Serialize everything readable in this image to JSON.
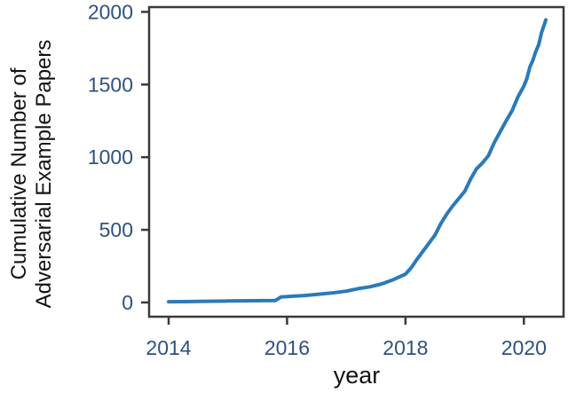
{
  "figure": {
    "background": "#ffffff"
  },
  "colors": {
    "axis_spine": "#3a3a3a",
    "tick_label": "#2e5181",
    "axis_text": "#121212",
    "line": "#2a7ab9"
  },
  "chart_data": {
    "type": "line",
    "title": "",
    "xlabel": "year",
    "ylabel_lines": [
      "Cumulative Number of",
      "Adversarial Example Papers"
    ],
    "xticks": [
      2014,
      2016,
      2018,
      2020
    ],
    "xtick_labels": [
      "2014",
      "2016",
      "2018",
      "2020"
    ],
    "yticks": [
      0,
      500,
      1000,
      1500,
      2000
    ],
    "ytick_labels": [
      "0",
      "500",
      "1000",
      "1500",
      "2000"
    ],
    "xlim": [
      2013.67,
      2020.67
    ],
    "ylim": [
      -98,
      2033
    ],
    "grid": false,
    "legend": "none",
    "series": [
      {
        "name": "cumulative-adversarial-example-papers",
        "color": "#2a7ab9",
        "points": [
          [
            2014.0,
            5
          ],
          [
            2014.3,
            6
          ],
          [
            2014.6,
            8
          ],
          [
            2015.0,
            10
          ],
          [
            2015.4,
            12
          ],
          [
            2015.8,
            13
          ],
          [
            2015.9,
            38
          ],
          [
            2016.1,
            43
          ],
          [
            2016.3,
            48
          ],
          [
            2016.5,
            55
          ],
          [
            2016.75,
            65
          ],
          [
            2017.0,
            78
          ],
          [
            2017.2,
            95
          ],
          [
            2017.4,
            108
          ],
          [
            2017.6,
            128
          ],
          [
            2017.8,
            158
          ],
          [
            2018.0,
            195
          ],
          [
            2018.1,
            240
          ],
          [
            2018.2,
            300
          ],
          [
            2018.3,
            355
          ],
          [
            2018.4,
            410
          ],
          [
            2018.5,
            465
          ],
          [
            2018.6,
            545
          ],
          [
            2018.7,
            610
          ],
          [
            2018.8,
            665
          ],
          [
            2018.9,
            715
          ],
          [
            2019.0,
            765
          ],
          [
            2019.1,
            850
          ],
          [
            2019.2,
            920
          ],
          [
            2019.3,
            960
          ],
          [
            2019.4,
            1010
          ],
          [
            2019.5,
            1100
          ],
          [
            2019.6,
            1175
          ],
          [
            2019.7,
            1250
          ],
          [
            2019.8,
            1320
          ],
          [
            2019.9,
            1415
          ],
          [
            2020.0,
            1490
          ],
          [
            2020.05,
            1540
          ],
          [
            2020.1,
            1620
          ],
          [
            2020.15,
            1665
          ],
          [
            2020.2,
            1725
          ],
          [
            2020.25,
            1775
          ],
          [
            2020.3,
            1860
          ],
          [
            2020.35,
            1920
          ],
          [
            2020.37,
            1945
          ]
        ]
      }
    ]
  }
}
